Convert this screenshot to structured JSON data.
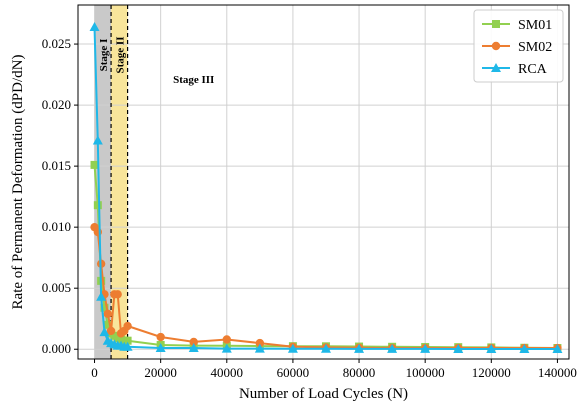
{
  "chart_data": {
    "type": "line",
    "title": "",
    "xlabel": "Number of Load Cycles (N)",
    "ylabel": "Rate of Permanent Deformation (dPD/dN)",
    "xlim": [
      -5000,
      143500
    ],
    "ylim": [
      -0.0008,
      0.0282
    ],
    "x_ticks": [
      0,
      20000,
      40000,
      60000,
      80000,
      100000,
      120000,
      140000
    ],
    "y_ticks": [
      0.0,
      0.005,
      0.01,
      0.015,
      0.02,
      0.025
    ],
    "x_tick_labels": [
      "0",
      "20000",
      "40000",
      "60000",
      "80000",
      "100000",
      "120000",
      "140000"
    ],
    "y_tick_labels": [
      "0.000",
      "0.005",
      "0.010",
      "0.015",
      "0.020",
      "0.025"
    ],
    "grid": true,
    "legend_position": "top-right",
    "stages": [
      {
        "label": "Stage I",
        "x_start": 0,
        "x_end": 5000,
        "color": "#c0c0c0"
      },
      {
        "label": "Stage II",
        "x_start": 5000,
        "x_end": 10000,
        "color": "#f7e08a"
      },
      {
        "label": "Stage III"
      }
    ],
    "series": [
      {
        "name": "SM01",
        "color": "#92d050",
        "marker": "square",
        "x": [
          0,
          1000,
          2000,
          3000,
          4000,
          5000,
          6000,
          7000,
          8000,
          9000,
          10000,
          20000,
          30000,
          40000,
          50000,
          60000,
          70000,
          80000,
          90000,
          100000,
          110000,
          120000,
          130000,
          140000
        ],
        "y": [
          0.0151,
          0.0118,
          0.0056,
          0.0034,
          0.002,
          0.0013,
          0.0011,
          0.0009,
          0.0008,
          0.0007,
          0.0007,
          0.00035,
          0.0003,
          0.00028,
          0.00026,
          0.00025,
          0.00024,
          0.00022,
          0.0002,
          0.00018,
          0.00017,
          0.00015,
          0.00012,
          0.0001
        ]
      },
      {
        "name": "SM02",
        "color": "#ed7d31",
        "marker": "circle",
        "x": [
          0,
          1000,
          2000,
          3000,
          4000,
          5000,
          6000,
          7000,
          8000,
          9000,
          10000,
          20000,
          30000,
          40000,
          50000,
          60000,
          70000,
          80000,
          90000,
          100000,
          110000,
          120000,
          130000,
          140000
        ],
        "y": [
          0.01,
          0.0096,
          0.007,
          0.0045,
          0.0029,
          0.0015,
          0.0045,
          0.0045,
          0.0013,
          0.0015,
          0.0019,
          0.001,
          0.0006,
          0.0008,
          0.0005,
          0.0002,
          0.00015,
          0.00012,
          0.0001,
          0.0001,
          0.0001,
          0.0001,
          0.0001,
          0.0001
        ]
      },
      {
        "name": "RCA",
        "color": "#1fb8e8",
        "marker": "triangle",
        "x": [
          0,
          1000,
          2000,
          3000,
          4000,
          5000,
          6000,
          7000,
          8000,
          9000,
          10000,
          20000,
          30000,
          40000,
          50000,
          60000,
          70000,
          80000,
          90000,
          100000,
          110000,
          120000,
          130000,
          140000
        ],
        "y": [
          0.0264,
          0.0171,
          0.0043,
          0.0014,
          0.0007,
          0.0005,
          0.0004,
          0.0003,
          0.0003,
          0.0002,
          0.0002,
          0.0001,
          0.0001,
          5e-05,
          5e-05,
          4e-05,
          4e-05,
          3e-05,
          3e-05,
          3e-05,
          2e-05,
          2e-05,
          2e-05,
          2e-05
        ]
      }
    ]
  }
}
